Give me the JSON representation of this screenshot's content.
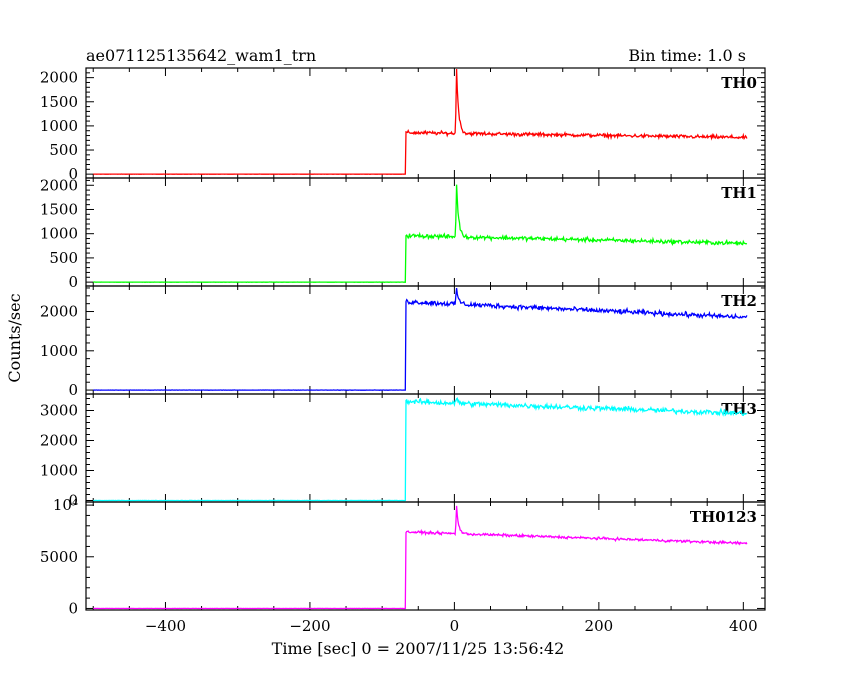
{
  "header": {
    "left_title": "ae071125135642_wam1_trn",
    "right_title": "Bin time: 1.0 s"
  },
  "axes": {
    "xlabel": "Time [sec] 0 = 2007/11/25 13:56:42",
    "ylabel": "Counts/sec"
  },
  "chart_data": {
    "type": "line",
    "x_range": [
      -510,
      430
    ],
    "x_ticks": [
      -400,
      -200,
      0,
      200,
      400
    ],
    "x_tick_labels": [
      "−400",
      "−200",
      "0",
      "200",
      "400"
    ],
    "grid": false,
    "legend": "none",
    "panels": [
      {
        "name": "TH0",
        "color": "#ff0000",
        "ylim": [
          -80,
          2200
        ],
        "yticks": [
          0,
          500,
          1000,
          1500,
          2000
        ],
        "ytick_labels": [
          "0",
          "500",
          "1000",
          "1500",
          "2000"
        ],
        "baseline": 0,
        "onset": -67,
        "plateau_start": 860,
        "plateau_end": 760,
        "peak_time": 3,
        "peak_value": 2200,
        "noise": 30
      },
      {
        "name": "TH1",
        "color": "#00ff00",
        "ylim": [
          -80,
          2150
        ],
        "yticks": [
          0,
          500,
          1000,
          1500,
          2000
        ],
        "ytick_labels": [
          "0",
          "500",
          "1000",
          "1500",
          "2000"
        ],
        "baseline": 0,
        "onset": -67,
        "plateau_start": 960,
        "plateau_end": 800,
        "peak_time": 3,
        "peak_value": 2050,
        "noise": 35
      },
      {
        "name": "TH2",
        "color": "#0000ff",
        "ylim": [
          -100,
          2650
        ],
        "yticks": [
          0,
          1000,
          2000
        ],
        "ytick_labels": [
          "0",
          "1000",
          "2000"
        ],
        "baseline": 0,
        "onset": -67,
        "plateau_start": 2250,
        "plateau_end": 1850,
        "peak_time": 3,
        "peak_value": 2650,
        "noise": 50
      },
      {
        "name": "TH3",
        "color": "#00ffff",
        "ylim": [
          -50,
          3550
        ],
        "yticks": [
          0,
          1000,
          2000,
          3000
        ],
        "ytick_labels": [
          "0",
          "1000",
          "2000",
          "3000"
        ],
        "baseline": 0,
        "onset": -67,
        "plateau_start": 3300,
        "plateau_end": 2900,
        "peak_time": 3,
        "peak_value": 3450,
        "noise": 70
      },
      {
        "name": "TH0123",
        "color": "#ff00ff",
        "ylim": [
          -150,
          10300
        ],
        "yticks": [
          0,
          5000,
          10000
        ],
        "ytick_labels": [
          "0",
          "5000",
          "10⁴"
        ],
        "baseline": 0,
        "onset": -67,
        "plateau_start": 7400,
        "plateau_end": 6300,
        "peak_time": 3,
        "peak_value": 10000,
        "noise": 100
      }
    ]
  }
}
